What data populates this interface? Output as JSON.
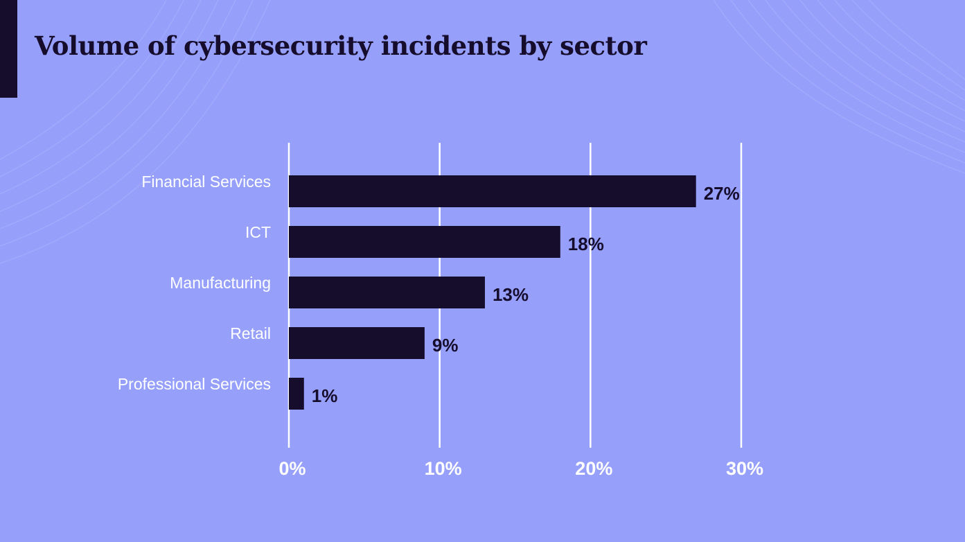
{
  "colors": {
    "background": "#96a0fb",
    "bar": "#160c2c",
    "grid": "#ffffff",
    "title": "#160c2c",
    "label": "#ffffff"
  },
  "chart_data": {
    "type": "bar",
    "orientation": "horizontal",
    "title": "Volume of cybersecurity incidents by sector",
    "xlabel": "",
    "ylabel": "",
    "categories": [
      "Financial Services",
      "ICT",
      "Manufacturing",
      "Retail",
      "Professional Services"
    ],
    "values": [
      27,
      18,
      13,
      9,
      1
    ],
    "data_labels": [
      "27%",
      "18%",
      "13%",
      "9%",
      "1%"
    ],
    "xlim": [
      0,
      30
    ],
    "xticks": [
      0,
      10,
      20,
      30
    ],
    "xtick_labels": [
      "0%",
      "10%",
      "20%",
      "30%"
    ],
    "grid": true,
    "legend": "none"
  }
}
